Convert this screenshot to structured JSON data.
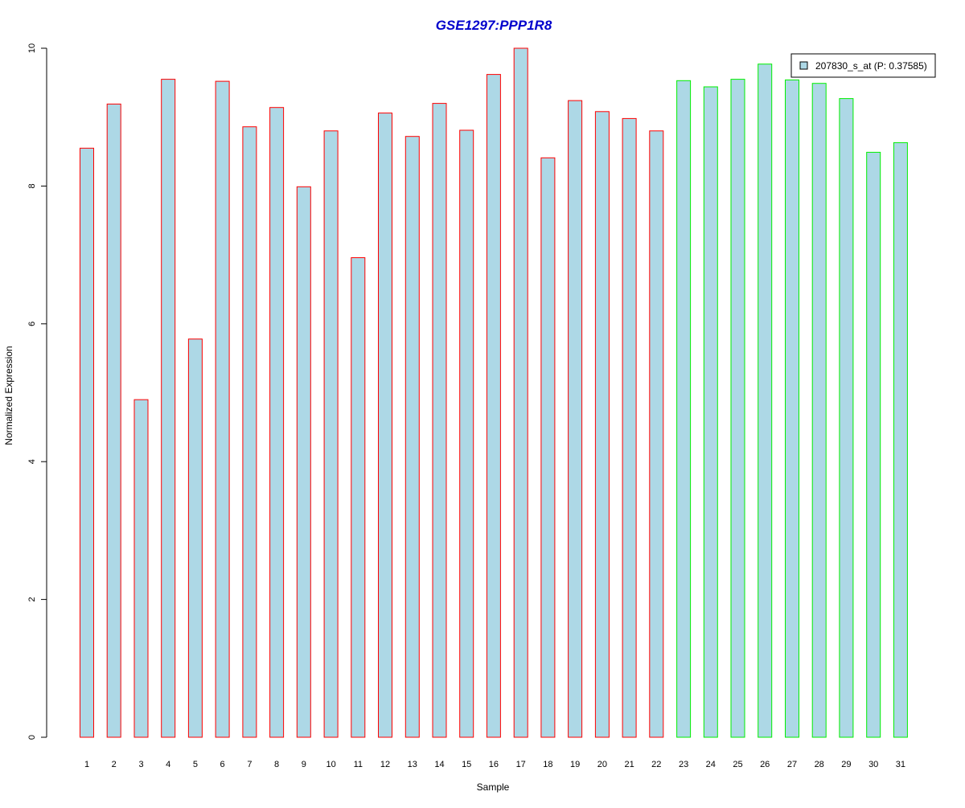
{
  "colors": {
    "title": "#0000cc",
    "bar_fill": "#add8e6",
    "group1_border": "#ff0000",
    "group2_border": "#00ee00",
    "axis": "#000000"
  },
  "chart_data": {
    "type": "bar",
    "title": "GSE1297:PPP1R8",
    "xlabel": "Sample",
    "ylabel": "Normalized Expression",
    "ylim": [
      0,
      10
    ],
    "yticks": [
      0,
      2,
      4,
      6,
      8,
      10
    ],
    "categories": [
      "1",
      "2",
      "3",
      "4",
      "5",
      "6",
      "7",
      "8",
      "9",
      "10",
      "11",
      "12",
      "13",
      "14",
      "15",
      "16",
      "17",
      "18",
      "19",
      "20",
      "21",
      "22",
      "23",
      "24",
      "25",
      "26",
      "27",
      "28",
      "29",
      "30",
      "31"
    ],
    "series": [
      {
        "name": "207830_s_at (P: 0.37585)",
        "values": [
          8.55,
          9.19,
          4.9,
          9.55,
          5.78,
          9.52,
          8.86,
          9.14,
          7.99,
          8.8,
          6.96,
          9.06,
          8.72,
          9.2,
          8.81,
          9.62,
          10.0,
          8.41,
          9.24,
          9.08,
          8.98,
          8.8,
          9.53,
          9.44,
          9.55,
          9.77,
          9.54,
          9.49,
          9.27,
          8.49,
          8.63
        ]
      }
    ],
    "groups": [
      {
        "border": "#ff0000",
        "samples": [
          "1",
          "2",
          "3",
          "4",
          "5",
          "6",
          "7",
          "8",
          "9",
          "10",
          "11",
          "12",
          "13",
          "14",
          "15",
          "16",
          "17",
          "18",
          "19",
          "20",
          "21",
          "22"
        ]
      },
      {
        "border": "#00ee00",
        "samples": [
          "23",
          "24",
          "25",
          "26",
          "27",
          "28",
          "29",
          "30",
          "31"
        ]
      }
    ],
    "grid": false,
    "legend": {
      "position": "top-right",
      "entries": [
        "207830_s_at (P: 0.37585)"
      ]
    }
  }
}
